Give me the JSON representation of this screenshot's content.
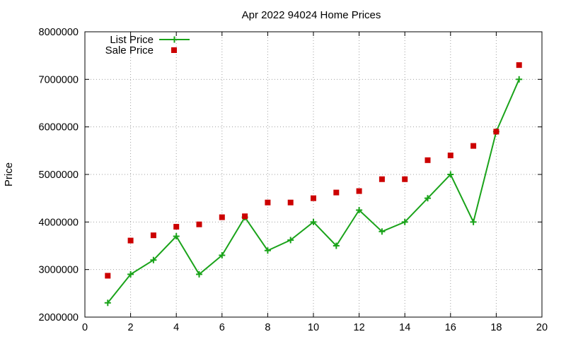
{
  "chart_data": {
    "type": "line",
    "title": "Apr 2022 94024 Home Prices",
    "xlabel": "",
    "ylabel": "Price",
    "xlim": [
      0,
      20
    ],
    "ylim": [
      2000000,
      8000000
    ],
    "x_ticks": [
      0,
      2,
      4,
      6,
      8,
      10,
      12,
      14,
      16,
      18,
      20
    ],
    "y_ticks": [
      2000000,
      3000000,
      4000000,
      5000000,
      6000000,
      7000000,
      8000000
    ],
    "x_tick_labels": [
      "0",
      "2",
      "4",
      "6",
      "8",
      "10",
      "12",
      "14",
      "16",
      "18",
      "20"
    ],
    "y_tick_labels": [
      "2000000",
      "3000000",
      "4000000",
      "5000000",
      "6000000",
      "7000000",
      "8000000"
    ],
    "grid": true,
    "legend_position": "top-left",
    "series": [
      {
        "name": "List Price",
        "style": "line-with-plus-markers",
        "color": "#1aa31a",
        "x": [
          1,
          2,
          3,
          4,
          5,
          6,
          7,
          8,
          9,
          10,
          11,
          12,
          13,
          14,
          15,
          16,
          17,
          18,
          19
        ],
        "values": [
          2300000,
          2900000,
          3200000,
          3700000,
          2900000,
          3300000,
          4100000,
          3400000,
          3620000,
          4000000,
          3500000,
          4250000,
          3800000,
          4000000,
          4500000,
          5000000,
          4000000,
          5900000,
          7000000
        ]
      },
      {
        "name": "Sale Price",
        "style": "square-markers",
        "color": "#cc0000",
        "x": [
          1,
          2,
          3,
          4,
          5,
          6,
          7,
          8,
          9,
          10,
          11,
          12,
          13,
          14,
          15,
          16,
          17,
          18,
          19
        ],
        "values": [
          2870000,
          3610000,
          3720000,
          3900000,
          3950000,
          4100000,
          4120000,
          4410000,
          4410000,
          4500000,
          4620000,
          4650000,
          4900000,
          4900000,
          5300000,
          5400000,
          5600000,
          5900000,
          7300000
        ]
      }
    ]
  }
}
